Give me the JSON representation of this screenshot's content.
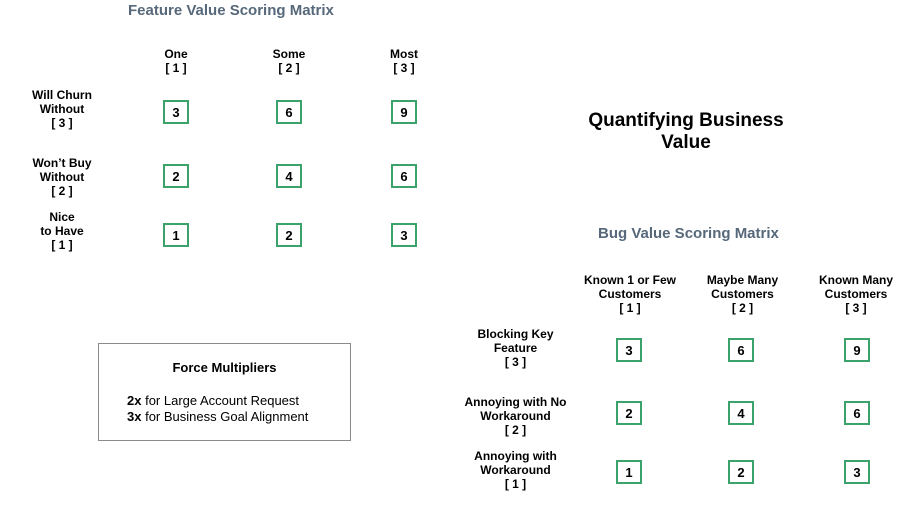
{
  "feature_matrix": {
    "title": "Feature Value Scoring Matrix",
    "columns": [
      {
        "label": "One",
        "score": "[ 1 ]"
      },
      {
        "label": "Some",
        "score": "[ 2 ]"
      },
      {
        "label": "Most",
        "score": "[ 3 ]"
      }
    ],
    "rows": [
      {
        "line1": "Will Churn",
        "line2": "Without",
        "score": "[ 3 ]",
        "values": [
          "3",
          "6",
          "9"
        ]
      },
      {
        "line1": "Won’t Buy",
        "line2": "Without",
        "score": "[ 2 ]",
        "values": [
          "2",
          "4",
          "6"
        ]
      },
      {
        "line1": "Nice",
        "line2": "to Have",
        "score": "[ 1 ]",
        "values": [
          "1",
          "2",
          "3"
        ]
      }
    ]
  },
  "main_title": {
    "line1": "Quantifying Business",
    "line2": "Value"
  },
  "bug_matrix": {
    "title": "Bug Value Scoring Matrix",
    "columns": [
      {
        "line1": "Known 1 or Few",
        "line2": "Customers",
        "score": "[ 1 ]"
      },
      {
        "line1": "Maybe Many",
        "line2": "Customers",
        "score": "[ 2 ]"
      },
      {
        "line1": "Known Many",
        "line2": "Customers",
        "score": "[ 3 ]"
      }
    ],
    "rows": [
      {
        "line1": "Blocking Key",
        "line2": "Feature",
        "score": "[ 3 ]",
        "values": [
          "3",
          "6",
          "9"
        ]
      },
      {
        "line1": "Annoying with No",
        "line2": "Workaround",
        "score": "[ 2 ]",
        "values": [
          "2",
          "4",
          "6"
        ]
      },
      {
        "line1": "Annoying with",
        "line2": "Workaround",
        "score": "[ 1 ]",
        "values": [
          "1",
          "2",
          "3"
        ]
      }
    ]
  },
  "force_multipliers": {
    "title": "Force Multipliers",
    "items": [
      {
        "factor": "2x",
        "text": " for Large Account Request"
      },
      {
        "factor": "3x",
        "text": " for Business Goal Alignment"
      }
    ]
  },
  "colors": {
    "cell_border": "#3aa26a",
    "matrix_title": "#56687a"
  }
}
